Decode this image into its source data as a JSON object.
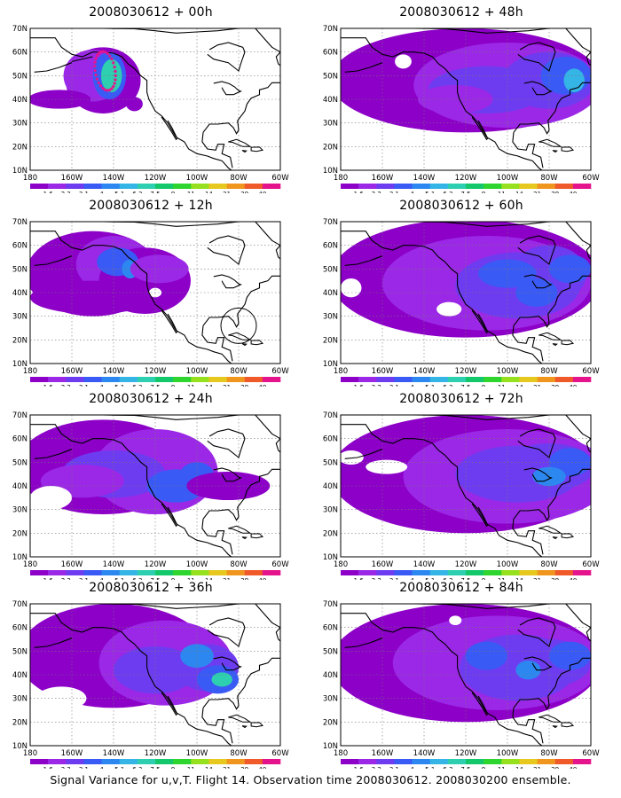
{
  "figure": {
    "caption": "Signal Variance for u,v,T. Flight 14. Observation time 2008030612. 2008030200 ensemble.",
    "lat_labels": [
      "70N",
      "60N",
      "50N",
      "40N",
      "30N",
      "20N",
      "10N"
    ],
    "lon_labels": [
      "180",
      "160W",
      "140W",
      "120W",
      "100W",
      "80W",
      "60W"
    ],
    "colorbar": {
      "labels": [
        "1.6",
        "2.2",
        "3.1",
        "4",
        "5.1",
        "6.3",
        "7.5",
        "9",
        "11",
        "14",
        "21",
        "29",
        "40"
      ],
      "colors": [
        "#8c00c8",
        "#9b28e6",
        "#6e3cf0",
        "#3a5af5",
        "#2c88f0",
        "#35b4e6",
        "#2ecfb0",
        "#12c86a",
        "#2ed52e",
        "#96e01e",
        "#e6c81e",
        "#f0961e",
        "#f05a2a",
        "#e6148c"
      ]
    },
    "panels": [
      {
        "title": "2008030612 + 00h",
        "stage": 0,
        "ring": "none",
        "features": [
          "flight-track-dots"
        ]
      },
      {
        "title": "2008030612 + 12h",
        "stage": 1,
        "ring": "none",
        "features": [
          "hurricane-circle"
        ]
      },
      {
        "title": "2008030612 + 24h",
        "stage": 2,
        "ring": "none",
        "features": []
      },
      {
        "title": "2008030612 + 36h",
        "stage": 3,
        "ring": "none",
        "features": []
      },
      {
        "title": "2008030612 + 48h",
        "stage": 4,
        "ring": "none",
        "features": []
      },
      {
        "title": "2008030612 + 60h",
        "stage": 5,
        "ring": "none",
        "features": []
      },
      {
        "title": "2008030612 + 72h",
        "stage": 6,
        "ring": "none",
        "features": []
      },
      {
        "title": "2008030612 + 84h",
        "stage": 7,
        "ring": "none",
        "features": []
      }
    ]
  }
}
